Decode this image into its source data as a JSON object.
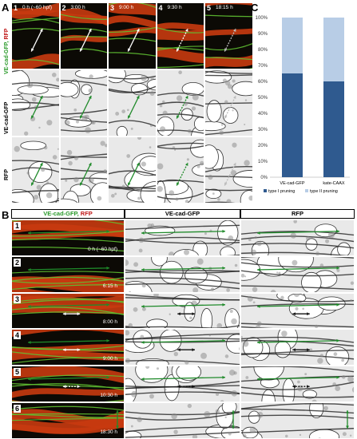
{
  "panel_a": {
    "letter": "A",
    "row_labels": {
      "merge_green": "VE-cad-GFP,",
      "merge_red": "RFP",
      "gfp": "VE-cad-GFP",
      "rfp": "RFP"
    },
    "timepoints": [
      {
        "num": "1",
        "time": "0 h (~60 hpf)"
      },
      {
        "num": "2",
        "time": "3:00 h"
      },
      {
        "num": "3",
        "time": "9:00 h"
      },
      {
        "num": "4",
        "time": "9:30 h"
      },
      {
        "num": "5",
        "time": "18:15 h"
      }
    ]
  },
  "panel_b": {
    "letter": "B",
    "headers": {
      "merge_green": "VE-cad-GFP,",
      "merge_red": "RFP",
      "gfp": "VE-cad-GFP",
      "rfp": "RFP"
    },
    "rows": [
      {
        "num": "1",
        "time": "0 h (~60 hpf)"
      },
      {
        "num": "2",
        "time": "6:15 h"
      },
      {
        "num": "3",
        "time": "8:00 h"
      },
      {
        "num": "4",
        "time": "9:00 h"
      },
      {
        "num": "5",
        "time": "10:30 h"
      },
      {
        "num": "6",
        "time": "18:30 h"
      }
    ]
  },
  "panel_c": {
    "letter": "C",
    "colors": {
      "type1": "#2f5a8f",
      "type2": "#b8cde6"
    },
    "chart_data": {
      "type": "bar",
      "stacked": true,
      "categories": [
        "VE-cad-GFP",
        "kate-CAAX"
      ],
      "series": [
        {
          "name": "type I pruning",
          "values": [
            65,
            60
          ]
        },
        {
          "name": "type II pruning",
          "values": [
            35,
            40
          ]
        }
      ],
      "ylim": [
        0,
        100
      ],
      "yticks": [
        "0%",
        "10%",
        "20%",
        "30%",
        "40%",
        "50%",
        "60%",
        "70%",
        "80%",
        "90%",
        "100%"
      ],
      "legend_position": "bottom"
    }
  }
}
